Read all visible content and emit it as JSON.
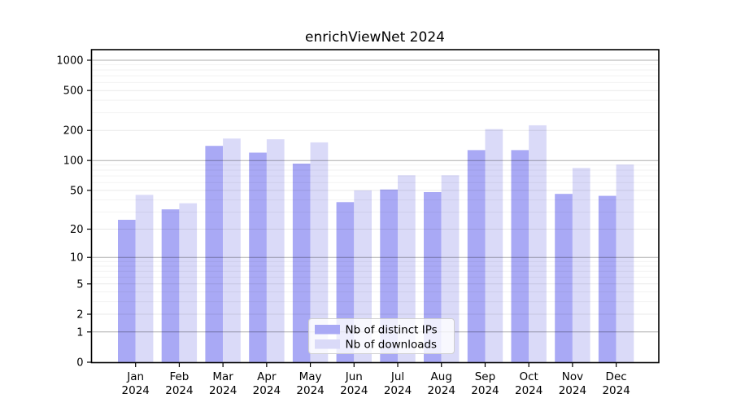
{
  "chart_data": {
    "type": "bar",
    "title": "enrichViewNet 2024",
    "categories": [
      "Jan",
      "Feb",
      "Mar",
      "Apr",
      "May",
      "Jun",
      "Jul",
      "Aug",
      "Sep",
      "Oct",
      "Nov",
      "Dec"
    ],
    "x_sub_label": "2024",
    "series": [
      {
        "name": "Nb of distinct IPs",
        "color": "#a9a9f5",
        "values": [
          25,
          32,
          140,
          120,
          93,
          38,
          51,
          48,
          127,
          127,
          46,
          44
        ]
      },
      {
        "name": "Nb of downloads",
        "color": "#dadaf8",
        "values": [
          45,
          37,
          166,
          163,
          152,
          50,
          71,
          71,
          206,
          225,
          84,
          91
        ]
      }
    ],
    "y_scale": "log1p",
    "y_ticks": [
      0,
      1,
      2,
      5,
      10,
      20,
      50,
      100,
      200,
      500,
      1000
    ],
    "ylim": [
      0,
      1280
    ],
    "xlabel": "",
    "ylabel": "",
    "grid": "on",
    "grid_major_values": [
      1,
      10,
      100,
      1000
    ],
    "grid_minor_labeled_values": [
      2,
      5,
      20,
      50,
      200,
      500
    ],
    "grid_minor_values": [
      3,
      4,
      6,
      7,
      8,
      9,
      30,
      40,
      60,
      70,
      80,
      90,
      300,
      400,
      600,
      700,
      800,
      900
    ],
    "legend_position": "lower center",
    "axis_color": "#000000",
    "background": "#ffffff"
  }
}
